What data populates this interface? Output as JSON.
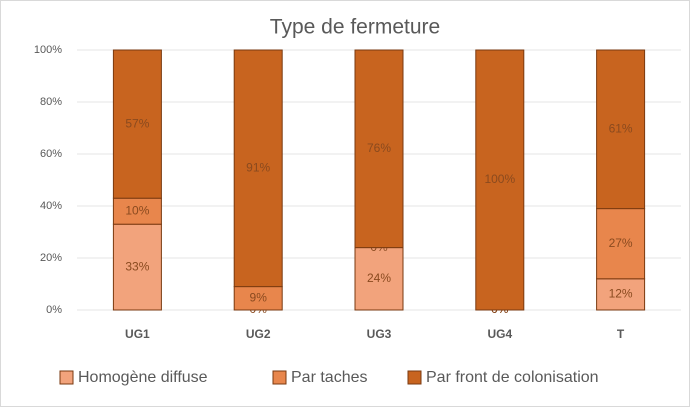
{
  "chart_data": {
    "type": "stacked_bar",
    "title": "Type de fermeture",
    "categories": [
      "UG1",
      "UG2",
      "UG3",
      "UG4",
      "T"
    ],
    "series": [
      {
        "name": "Homogène diffuse",
        "color": "#f2a37c",
        "values": [
          33,
          0,
          24,
          0,
          12
        ],
        "value_labels": [
          "33%",
          "0%",
          "24%",
          "0%",
          "12%"
        ]
      },
      {
        "name": "Par taches",
        "color": "#e8864c",
        "values": [
          10,
          9,
          0,
          0,
          27
        ],
        "value_labels": [
          "10%",
          "9%",
          "0%",
          "0%",
          "27%"
        ]
      },
      {
        "name": "Par front de colonisation",
        "color": "#c8641f",
        "values": [
          57,
          91,
          76,
          100,
          61
        ],
        "value_labels": [
          "57%",
          "91%",
          "76%",
          "100%",
          "61%"
        ]
      }
    ],
    "ylim": [
      0,
      100
    ],
    "yticks": [
      {
        "value": 0,
        "label": "0%"
      },
      {
        "value": 20,
        "label": "20%"
      },
      {
        "value": 40,
        "label": "40%"
      },
      {
        "value": 60,
        "label": "60%"
      },
      {
        "value": 80,
        "label": "80%"
      },
      {
        "value": 100,
        "label": "100%"
      }
    ],
    "grid": true,
    "legend": "bottom"
  }
}
